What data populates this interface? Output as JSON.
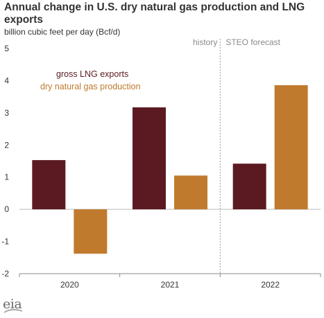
{
  "title": "Annual change in U.S. dry natural gas production and LNG exports",
  "subtitle": "billion cubic feet per day (Bcf/d)",
  "logo_text": "eia",
  "chart_data": {
    "type": "bar",
    "title": "Annual change in U.S. dry natural gas production and LNG exports",
    "ylabel": "billion cubic feet per day (Bcf/d)",
    "xlabel": "",
    "categories": [
      "2020",
      "2021",
      "2022"
    ],
    "ylim": [
      -2,
      5
    ],
    "yticks": [
      -2,
      -1,
      0,
      1,
      2,
      3,
      4,
      5
    ],
    "grid": false,
    "series": [
      {
        "name": "gross LNG exports",
        "values": [
          1.53,
          3.17,
          1.42
        ],
        "color": "#5b1a21"
      },
      {
        "name": "dry natural gas production",
        "values": [
          -1.38,
          1.05,
          3.86
        ],
        "color": "#c07a2e"
      }
    ],
    "legend_position": "top-left",
    "annotations": {
      "history_label": "history",
      "forecast_label": "STEO forecast",
      "forecast_divider_between": [
        "2021",
        "2022"
      ]
    }
  }
}
